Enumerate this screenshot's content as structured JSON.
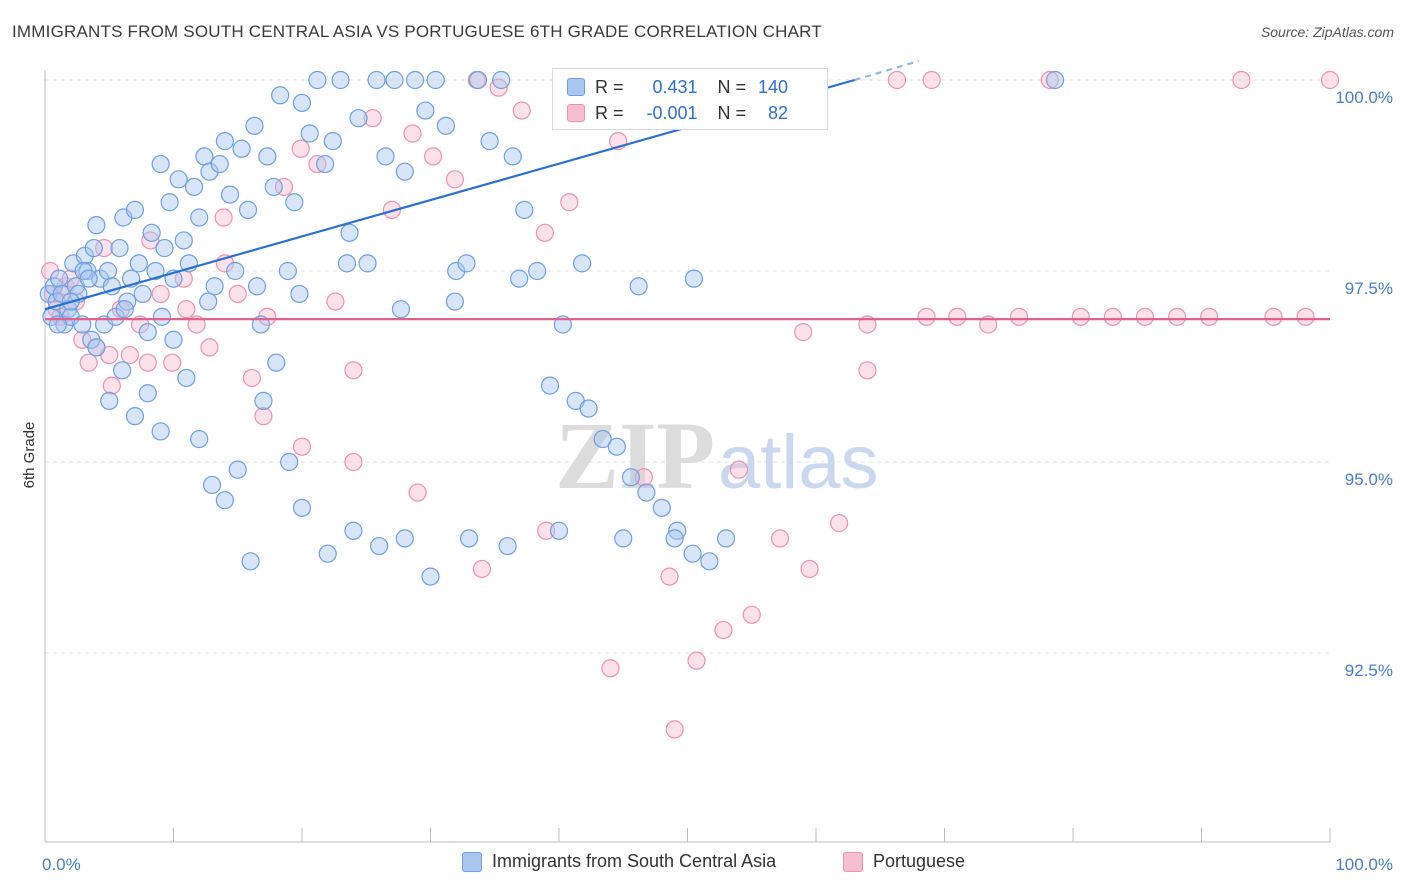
{
  "title": "IMMIGRANTS FROM SOUTH CENTRAL ASIA VS PORTUGUESE 6TH GRADE CORRELATION CHART",
  "source": "Source: ZipAtlas.com",
  "watermark": {
    "zip": "ZIP",
    "atlas": "atlas"
  },
  "colors": {
    "blue_fill": "#a9c6ef",
    "blue_stroke": "#6f9fde",
    "blue_line": "#2c6fd1",
    "pink_fill": "#f6bfd0",
    "pink_stroke": "#ea92b0",
    "pink_line": "#e0628c",
    "axis_text": "#4a7cc9",
    "grid": "#e3e3e3"
  },
  "stats_box": {
    "rows": [
      {
        "series": "blue",
        "r_label": "R =",
        "r_value": "0.431",
        "n_label": "N =",
        "n_value": "140"
      },
      {
        "series": "pink",
        "r_label": "R =",
        "r_value": "-0.001",
        "n_label": "N =",
        "n_value": "82"
      }
    ]
  },
  "chart_data": {
    "type": "scatter",
    "title": "IMMIGRANTS FROM SOUTH CENTRAL ASIA VS PORTUGUESE 6TH GRADE CORRELATION CHART",
    "xlabel": "",
    "ylabel": "6th Grade",
    "xlim": [
      0,
      100
    ],
    "ylim": [
      90.2,
      100.5
    ],
    "x_tick_labels": [
      "0.0%",
      "100.0%"
    ],
    "y_ticks": [
      92.5,
      95.0,
      97.5,
      100.0
    ],
    "y_tick_labels": [
      "92.5%",
      "95.0%",
      "97.5%",
      "100.0%"
    ],
    "legend": [
      "Immigrants from South Central Asia",
      "Portuguese"
    ],
    "series": [
      {
        "name": "Immigrants from South Central Asia",
        "r": 0.431,
        "n": 140,
        "trend": {
          "x": [
            0,
            63
          ],
          "y": [
            97.0,
            100.0
          ]
        },
        "x": [
          0.3,
          0.5,
          0.7,
          0.9,
          1.1,
          1.3,
          1.5,
          1.8,
          2.0,
          2.2,
          2.4,
          2.6,
          2.9,
          3.1,
          3.3,
          3.6,
          3.8,
          4.0,
          4.3,
          4.6,
          4.9,
          5.2,
          5.5,
          5.8,
          6.1,
          6.4,
          6.7,
          7.0,
          7.3,
          7.6,
          8.0,
          8.3,
          8.6,
          9.0,
          9.3,
          9.7,
          10.0,
          10.4,
          10.8,
          11.2,
          11.6,
          12.0,
          12.4,
          12.8,
          13.2,
          13.6,
          14.0,
          14.4,
          14.8,
          15.3,
          15.8,
          16.3,
          16.8,
          17.3,
          17.8,
          18.3,
          18.9,
          19.4,
          20.0,
          20.6,
          21.2,
          21.8,
          22.4,
          23.0,
          23.7,
          24.4,
          25.1,
          25.8,
          26.5,
          27.2,
          28.0,
          28.8,
          29.6,
          30.4,
          31.2,
          32.0,
          32.8,
          33.7,
          34.6,
          35.5,
          36.4,
          37.3,
          38.3,
          39.3,
          40.3,
          41.3,
          42.3,
          43.4,
          44.5,
          45.6,
          46.8,
          48.0,
          49.2,
          50.4,
          51.7,
          53.0,
          1.0,
          2.0,
          3.0,
          4.0,
          5.0,
          6.0,
          7.0,
          8.0,
          9.0,
          10.0,
          11.0,
          12.0,
          13.0,
          14.0,
          15.0,
          16.0,
          17.0,
          18.0,
          19.0,
          20.0,
          22.0,
          24.0,
          26.0,
          28.0,
          30.0,
          33.0,
          36.0,
          40.0,
          45.0,
          49.0,
          3.4,
          6.2,
          9.1,
          12.7,
          16.5,
          19.8,
          23.5,
          27.7,
          31.9,
          36.9,
          41.8,
          46.2,
          50.5,
          78.6
        ],
        "y": [
          97.2,
          96.9,
          97.3,
          97.1,
          97.4,
          97.2,
          96.8,
          97.0,
          96.9,
          97.6,
          97.3,
          97.2,
          96.8,
          97.7,
          97.5,
          96.6,
          97.8,
          98.1,
          97.4,
          96.8,
          97.5,
          97.3,
          96.9,
          97.8,
          98.2,
          97.1,
          97.4,
          98.3,
          97.6,
          97.2,
          96.7,
          98.0,
          97.5,
          98.9,
          97.8,
          98.4,
          97.4,
          98.7,
          97.9,
          97.6,
          98.6,
          98.2,
          99.0,
          98.8,
          97.3,
          98.9,
          99.2,
          98.5,
          97.5,
          99.1,
          98.3,
          99.4,
          96.8,
          99.0,
          98.6,
          99.8,
          97.5,
          98.4,
          99.7,
          99.3,
          100.0,
          98.9,
          99.2,
          100.0,
          98.0,
          99.5,
          97.6,
          100.0,
          99.0,
          100.0,
          98.8,
          100.0,
          99.6,
          100.0,
          99.4,
          97.5,
          97.6,
          100.0,
          99.2,
          100.0,
          99.0,
          98.3,
          97.5,
          96.0,
          96.8,
          95.8,
          95.7,
          95.3,
          95.2,
          94.8,
          94.6,
          94.4,
          94.1,
          93.8,
          93.7,
          94.0,
          96.8,
          97.1,
          97.5,
          96.5,
          95.8,
          96.2,
          95.6,
          95.9,
          95.4,
          96.6,
          96.1,
          95.3,
          94.7,
          94.5,
          94.9,
          93.7,
          95.8,
          96.3,
          95.0,
          94.4,
          93.8,
          94.1,
          93.9,
          94.0,
          93.5,
          94.0,
          93.9,
          94.1,
          94.0,
          94.0,
          97.4,
          97.0,
          96.9,
          97.1,
          97.3,
          97.2,
          97.6,
          97.0,
          97.1,
          97.4,
          97.6,
          97.3,
          97.4,
          100.0
        ]
      },
      {
        "name": "Portuguese",
        "r": -0.001,
        "n": 82,
        "trend": {
          "x": [
            0,
            100
          ],
          "y": [
            96.87,
            96.87
          ]
        },
        "x": [
          0.4,
          0.6,
          0.9,
          1.2,
          1.6,
          2.0,
          2.4,
          2.9,
          3.4,
          4.0,
          4.6,
          5.2,
          5.9,
          6.6,
          7.4,
          8.2,
          9.0,
          9.9,
          10.8,
          11.8,
          12.8,
          13.9,
          15.0,
          16.1,
          17.3,
          18.6,
          19.9,
          21.2,
          22.6,
          24.0,
          25.5,
          27.0,
          28.6,
          30.2,
          31.9,
          33.6,
          35.3,
          37.1,
          38.9,
          40.8,
          42.7,
          44.6,
          46.6,
          48.6,
          50.7,
          52.8,
          55.0,
          57.2,
          59.5,
          61.8,
          64.0,
          66.3,
          68.6,
          71.0,
          73.4,
          75.8,
          78.2,
          80.6,
          83.1,
          85.6,
          88.1,
          90.6,
          93.1,
          95.6,
          98.1,
          100.0,
          5.0,
          8.0,
          11.0,
          14.0,
          17.0,
          20.0,
          24.0,
          29.0,
          34.0,
          39.0,
          44.0,
          49.0,
          54.0,
          59.0,
          64.0,
          69.0
        ],
        "y": [
          97.5,
          97.2,
          97.0,
          96.9,
          97.3,
          97.4,
          97.1,
          96.6,
          96.3,
          96.5,
          97.8,
          96.0,
          97.0,
          96.4,
          96.8,
          97.9,
          97.2,
          96.3,
          97.4,
          96.8,
          96.5,
          98.2,
          97.2,
          96.1,
          96.9,
          98.6,
          99.1,
          98.9,
          97.1,
          96.2,
          99.5,
          98.3,
          99.3,
          99.0,
          98.7,
          100.0,
          99.9,
          99.6,
          98.0,
          98.4,
          100.0,
          99.2,
          94.8,
          93.5,
          92.4,
          92.8,
          93.0,
          94.0,
          93.6,
          94.2,
          96.2,
          100.0,
          96.9,
          96.9,
          96.8,
          96.9,
          100.0,
          96.9,
          96.9,
          96.9,
          96.9,
          96.9,
          100.0,
          96.9,
          96.9,
          100.0,
          96.4,
          96.3,
          97.0,
          97.6,
          95.6,
          95.2,
          95.0,
          94.6,
          93.6,
          94.1,
          92.3,
          91.5,
          94.9,
          96.7,
          96.8,
          100.0
        ]
      }
    ]
  }
}
